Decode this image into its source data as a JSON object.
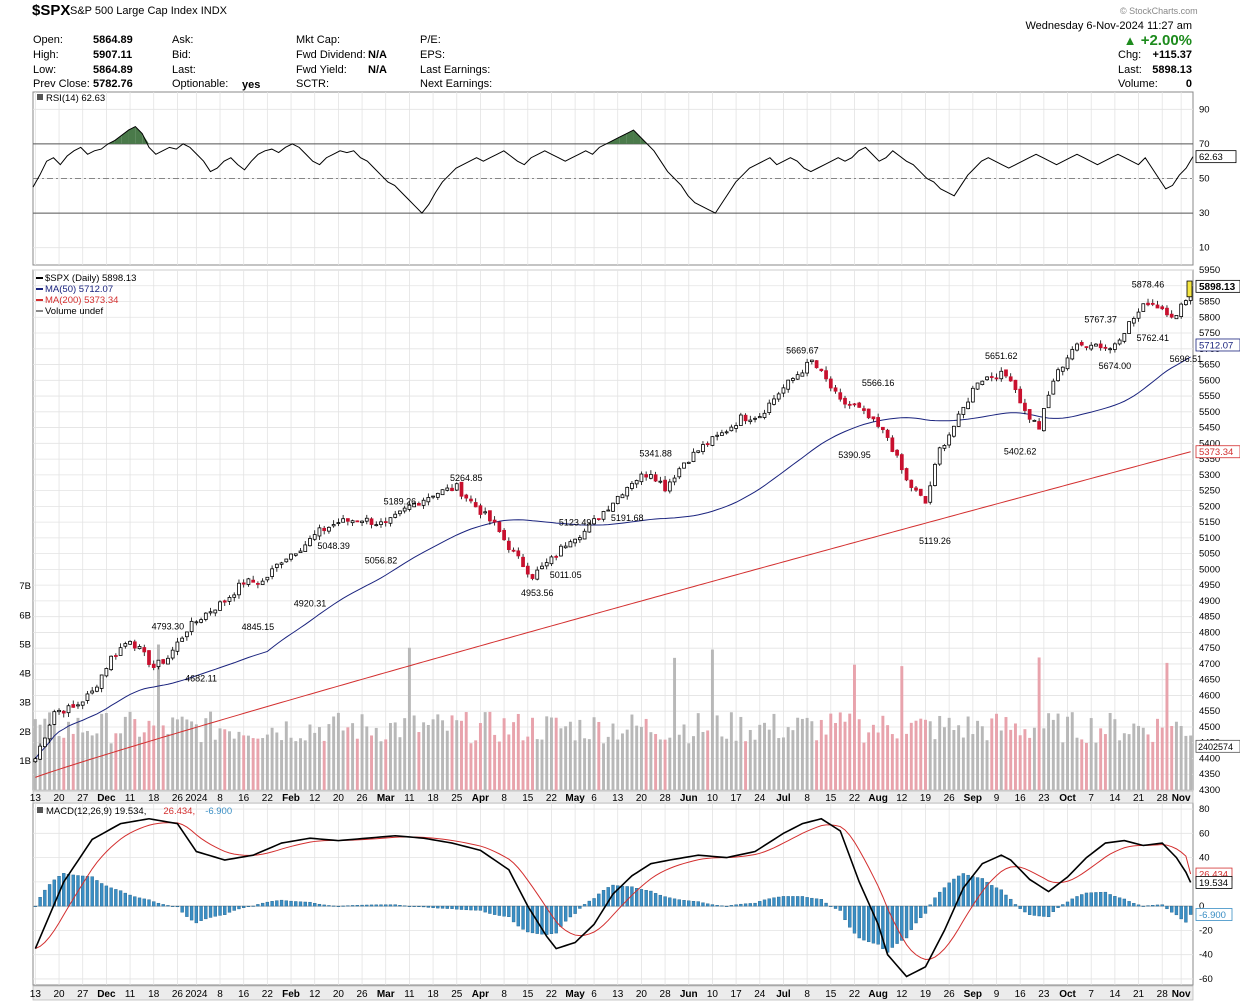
{
  "header": {
    "symbol": "$SPX",
    "description": "S&P 500 Large Cap Index",
    "exchange": "INDX",
    "copyright": "© StockCharts.com",
    "date_time": "Wednesday  6-Nov-2024 11:27 am",
    "change_pct": "+2.00%",
    "change_dir": "up-arrow-icon",
    "col1": [
      {
        "label": "Open:",
        "value": "5864.89"
      },
      {
        "label": "High:",
        "value": "5907.11"
      },
      {
        "label": "Low:",
        "value": "5864.89"
      },
      {
        "label": "Prev Close:",
        "value": "5782.76"
      }
    ],
    "col2": [
      {
        "label": "Ask:",
        "value": ""
      },
      {
        "label": "Bid:",
        "value": ""
      },
      {
        "label": "Last:",
        "value": ""
      },
      {
        "label": "Optionable:",
        "value": "yes"
      }
    ],
    "col3": [
      {
        "label": "Mkt Cap:",
        "value": ""
      },
      {
        "label": "Fwd Dividend:",
        "value": "N/A"
      },
      {
        "label": "Fwd Yield:",
        "value": "N/A"
      },
      {
        "label": "SCTR:",
        "value": ""
      }
    ],
    "col4": [
      {
        "label": "P/E:",
        "value": ""
      },
      {
        "label": "EPS:",
        "value": ""
      },
      {
        "label": "Last Earnings:",
        "value": ""
      },
      {
        "label": "Next Earnings:",
        "value": ""
      }
    ],
    "col5": [
      {
        "label": "Chg:",
        "value": "+115.37"
      },
      {
        "label": "Last:",
        "value": "5898.13"
      },
      {
        "label": "Volume:",
        "value": "0"
      }
    ]
  },
  "colors": {
    "up": "#ffffff",
    "down": "#c8102e",
    "ma50": "#1a237e",
    "ma200": "#d32f2f",
    "rsi_fill": "#4a7a4a",
    "macd_hist": "#3a8ec4",
    "grid": "#e3e3e3"
  },
  "chart_data": [
    {
      "type": "line",
      "title": "RSI(14) 62.63",
      "legend": "RSI(14) 62.63",
      "y_ticks": [
        90,
        70,
        50,
        30,
        10
      ],
      "ylim": [
        0,
        100
      ],
      "overbought": 70,
      "oversold": 30,
      "last_label": "62.63",
      "last": 62.63,
      "values": [
        45,
        52,
        60,
        62,
        58,
        63,
        66,
        68,
        64,
        66,
        67,
        70,
        72,
        75,
        78,
        80,
        76,
        68,
        64,
        66,
        68,
        67,
        70,
        68,
        64,
        60,
        54,
        56,
        60,
        62,
        58,
        55,
        60,
        64,
        66,
        67,
        65,
        68,
        70,
        68,
        64,
        60,
        58,
        62,
        64,
        66,
        65,
        66,
        62,
        60,
        56,
        52,
        48,
        46,
        42,
        38,
        34,
        30,
        35,
        42,
        48,
        52,
        56,
        58,
        60,
        62,
        60,
        62,
        64,
        66,
        63,
        60,
        58,
        62,
        64,
        66,
        64,
        62,
        60,
        62,
        64,
        66,
        64,
        68,
        70,
        72,
        74,
        76,
        78,
        74,
        70,
        66,
        60,
        54,
        50,
        46,
        40,
        36,
        34,
        32,
        30,
        36,
        42,
        48,
        52,
        56,
        58,
        60,
        62,
        58,
        60,
        62,
        60,
        56,
        54,
        56,
        58,
        60,
        62,
        60,
        62,
        66,
        68,
        64,
        60,
        62,
        66,
        63,
        60,
        58,
        54,
        50,
        48,
        44,
        42,
        40,
        46,
        52,
        56,
        60,
        62,
        60,
        58,
        56,
        58,
        60,
        62,
        64,
        62,
        60,
        58,
        60,
        62,
        64,
        62,
        60,
        58,
        60,
        62,
        64,
        62,
        60,
        58,
        62,
        56,
        50,
        44,
        46,
        52,
        56,
        62.63
      ]
    },
    {
      "type": "candlestick",
      "title": "$SPX (Daily) 5898.13",
      "legend": [
        {
          "name": "$SPX (Daily) 5898.13"
        },
        {
          "name": "MA(50) 5712.07"
        },
        {
          "name": "MA(200) 5373.34"
        },
        {
          "name": "Volume undef"
        }
      ],
      "ylim": [
        4300,
        5950
      ],
      "y_ticks": [
        5950,
        5900,
        5850,
        5800,
        5750,
        5700,
        5650,
        5600,
        5550,
        5500,
        5450,
        5400,
        5350,
        5300,
        5250,
        5200,
        5150,
        5100,
        5050,
        5000,
        4950,
        4900,
        4850,
        4800,
        4750,
        4700,
        4650,
        4600,
        4550,
        4500,
        4450,
        4400,
        4350,
        4300
      ],
      "volume_ticks": [
        "7B",
        "6B",
        "5B",
        "4B",
        "3B",
        "2B",
        "1B"
      ],
      "volume_values": [
        7,
        6,
        5,
        4,
        3,
        2,
        1
      ],
      "volume_ylim": [
        0,
        7.5
      ],
      "x_ticks": [
        "13",
        "20",
        "27",
        "Dec",
        "11",
        "18",
        "26",
        "2024",
        "8",
        "16",
        "22",
        "Feb",
        "12",
        "20",
        "26",
        "Mar",
        "11",
        "18",
        "25",
        "Apr",
        "8",
        "15",
        "22",
        "May",
        "6",
        "13",
        "20",
        "28",
        "Jun",
        "10",
        "17",
        "24",
        "Jul",
        "8",
        "15",
        "22",
        "Aug",
        "12",
        "19",
        "26",
        "Sep",
        "9",
        "16",
        "23",
        "Oct",
        "7",
        "14",
        "21",
        "28",
        "Nov"
      ],
      "x_tick_pos": [
        0,
        5,
        10,
        15,
        20,
        25,
        30,
        34,
        39,
        44,
        49,
        54,
        59,
        64,
        69,
        74,
        79,
        84,
        89,
        94,
        99,
        104,
        109,
        114,
        118,
        123,
        128,
        133,
        138,
        143,
        148,
        153,
        158,
        163,
        168,
        173,
        178,
        183,
        188,
        193,
        198,
        203,
        208,
        213,
        218,
        223,
        228,
        233,
        238,
        242
      ],
      "price_labels": [
        "4793.30",
        "4682.11",
        "4845.15",
        "4920.31",
        "5048.39",
        "5056.82",
        "5189.26",
        "5264.85",
        "4953.56",
        "5011.05",
        "5123.49",
        "5191.68",
        "5341.88",
        "5390.95",
        "5566.16",
        "5669.67",
        "5119.26",
        "5402.62",
        "5651.62",
        "5767.37",
        "5674.00",
        "5878.46",
        "5762.41",
        "5696.51"
      ],
      "last_price": "5898.13",
      "last_price_value": 5898.13,
      "ma50_label": "5712.07",
      "ma50_last": 5712.07,
      "ma200_label": "5373.34",
      "ma200_last": 5373.34,
      "volume_last_label": "2402574",
      "volume_last": 2402574
    },
    {
      "type": "bar",
      "title": "MACD(12,26,9) 19.534, 26.434, -6.900",
      "legend": "MACD(12,26,9) 19.534, 26.434, -6.900",
      "legend_parts": [
        {
          "text": "MACD(12,26,9) 19.534,",
          "color": "#000"
        },
        {
          "text": "26.434,",
          "color": "#d32f2f"
        },
        {
          "text": "-6.900",
          "color": "#3a8ec4"
        }
      ],
      "y_ticks": [
        80,
        60,
        40,
        20,
        0,
        -20,
        -40,
        -60
      ],
      "ylim": [
        -65,
        85
      ],
      "macd_label": "19.534",
      "signal_label": "26.434",
      "hist_label": "-6.900",
      "macd_last": 19.534,
      "signal_last": 26.434,
      "hist_last": -6.9,
      "x_ticks": [
        "13",
        "20",
        "27",
        "Dec",
        "11",
        "18",
        "26",
        "2024",
        "8",
        "16",
        "22",
        "Feb",
        "12",
        "20",
        "26",
        "Mar",
        "11",
        "18",
        "25",
        "Apr",
        "8",
        "15",
        "22",
        "May",
        "6",
        "13",
        "20",
        "28",
        "Jun",
        "10",
        "17",
        "24",
        "Jul",
        "8",
        "15",
        "22",
        "Aug",
        "12",
        "19",
        "26",
        "Sep",
        "9",
        "16",
        "23",
        "Oct",
        "7",
        "14",
        "21",
        "28",
        "Nov"
      ]
    }
  ]
}
